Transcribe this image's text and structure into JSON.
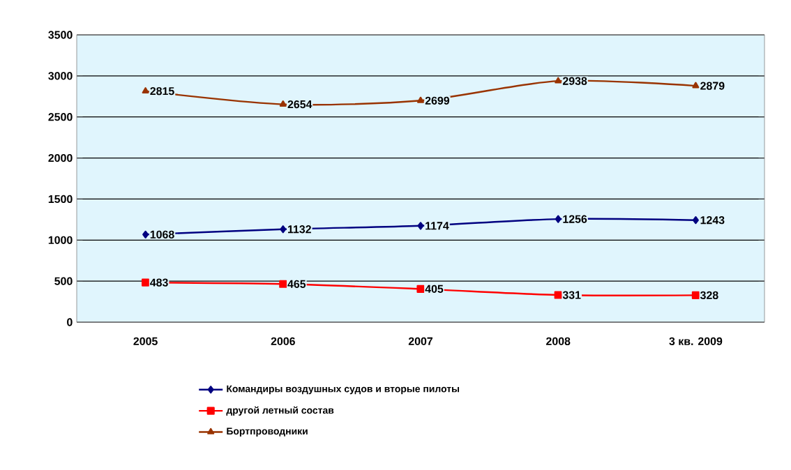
{
  "chart_data": {
    "type": "line",
    "categories": [
      "2005",
      "2006",
      "2007",
      "2008",
      "3 кв. 2009"
    ],
    "series": [
      {
        "name": "Командиры воздушных судов и вторые пилоты",
        "color": "#000080",
        "marker": "diamond",
        "values": [
          1068,
          1132,
          1174,
          1256,
          1243
        ]
      },
      {
        "name": "другой летный состав",
        "color": "#ff0000",
        "marker": "square",
        "values": [
          483,
          465,
          405,
          331,
          328
        ]
      },
      {
        "name": "Бортпроводники",
        "color": "#993300",
        "marker": "triangle",
        "values": [
          2815,
          2654,
          2699,
          2938,
          2879
        ]
      }
    ],
    "ylim": [
      0,
      3500
    ],
    "yticks": [
      0,
      500,
      1000,
      1500,
      2000,
      2500,
      3000,
      3500
    ],
    "grid": "y",
    "legend": "bottom",
    "data_labels": true
  }
}
